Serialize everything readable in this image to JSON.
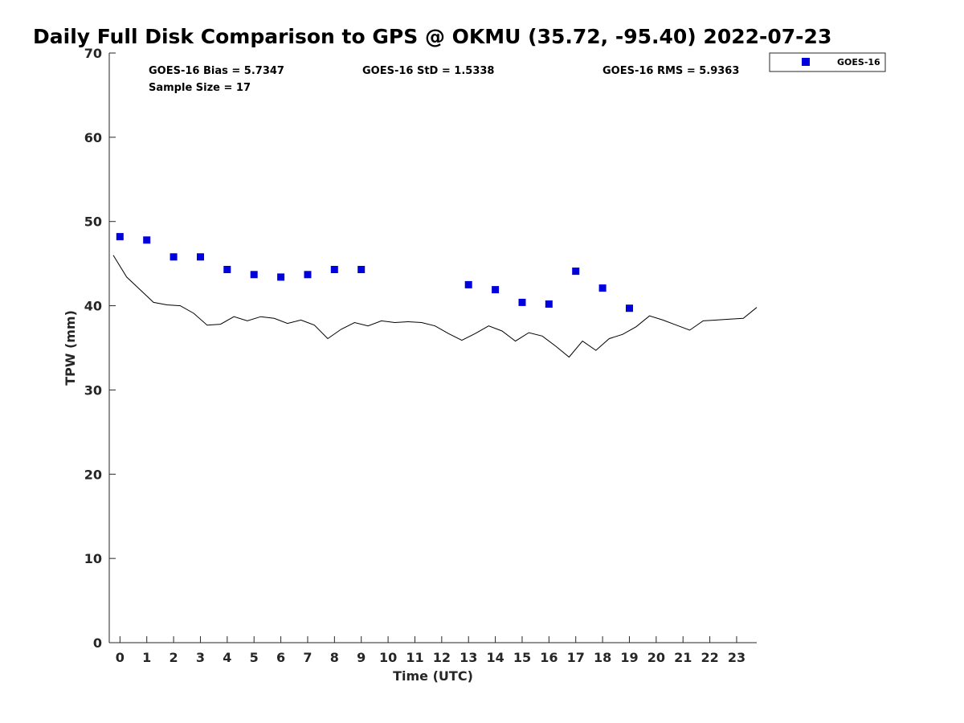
{
  "chart_data": {
    "type": "scatter",
    "title": "Daily Full Disk Comparison to GPS @ OKMU (35.72, -95.40) 2022-07-23",
    "xlabel": "Time (UTC)",
    "ylabel": "TPW (mm)",
    "xlim": [
      -0.4,
      23.75
    ],
    "ylim": [
      0,
      70
    ],
    "xticks": [
      "0",
      "1",
      "2",
      "3",
      "4",
      "5",
      "6",
      "7",
      "8",
      "9",
      "10",
      "11",
      "12",
      "13",
      "14",
      "15",
      "16",
      "17",
      "18",
      "19",
      "20",
      "21",
      "22",
      "23"
    ],
    "yticks": [
      "0",
      "10",
      "20",
      "30",
      "40",
      "50",
      "60",
      "70"
    ],
    "grid": false,
    "legend_position": "top-right-outside",
    "stats": {
      "bias": "GOES-16 Bias = 5.7347",
      "std": "GOES-16 StD = 1.5338",
      "rms": "GOES-16 RMS = 5.9363",
      "sample": "Sample Size = 17"
    },
    "series": [
      {
        "name": "GOES-16",
        "kind": "scatter",
        "marker": "square",
        "color": "#0000dd",
        "points": [
          {
            "x": 0,
            "y": 48.2
          },
          {
            "x": 1,
            "y": 47.8
          },
          {
            "x": 2,
            "y": 45.8
          },
          {
            "x": 3,
            "y": 45.8
          },
          {
            "x": 4,
            "y": 44.3
          },
          {
            "x": 5,
            "y": 43.7
          },
          {
            "x": 6,
            "y": 43.4
          },
          {
            "x": 7,
            "y": 43.7
          },
          {
            "x": 8,
            "y": 44.3
          },
          {
            "x": 9,
            "y": 44.3
          },
          {
            "x": 13,
            "y": 42.5
          },
          {
            "x": 14,
            "y": 41.9
          },
          {
            "x": 15,
            "y": 40.4
          },
          {
            "x": 16,
            "y": 40.2
          },
          {
            "x": 17,
            "y": 44.1
          },
          {
            "x": 18,
            "y": 42.1
          },
          {
            "x": 19,
            "y": 39.7
          }
        ]
      },
      {
        "kind": "line",
        "color": "#000000",
        "points": [
          {
            "x": -0.25,
            "y": 46.0
          },
          {
            "x": 0.25,
            "y": 43.4
          },
          {
            "x": 0.75,
            "y": 41.9
          },
          {
            "x": 1.25,
            "y": 40.4
          },
          {
            "x": 1.75,
            "y": 40.1
          },
          {
            "x": 2.25,
            "y": 40.0
          },
          {
            "x": 2.75,
            "y": 39.1
          },
          {
            "x": 3.25,
            "y": 37.7
          },
          {
            "x": 3.75,
            "y": 37.8
          },
          {
            "x": 4.25,
            "y": 38.7
          },
          {
            "x": 4.75,
            "y": 38.2
          },
          {
            "x": 5.25,
            "y": 38.7
          },
          {
            "x": 5.75,
            "y": 38.5
          },
          {
            "x": 6.25,
            "y": 37.9
          },
          {
            "x": 6.75,
            "y": 38.3
          },
          {
            "x": 7.25,
            "y": 37.7
          },
          {
            "x": 7.75,
            "y": 36.1
          },
          {
            "x": 8.25,
            "y": 37.2
          },
          {
            "x": 8.75,
            "y": 38.0
          },
          {
            "x": 9.25,
            "y": 37.6
          },
          {
            "x": 9.75,
            "y": 38.2
          },
          {
            "x": 10.25,
            "y": 38.0
          },
          {
            "x": 10.75,
            "y": 38.1
          },
          {
            "x": 11.25,
            "y": 38.0
          },
          {
            "x": 11.75,
            "y": 37.6
          },
          {
            "x": 12.25,
            "y": 36.7
          },
          {
            "x": 12.75,
            "y": 35.9
          },
          {
            "x": 13.25,
            "y": 36.7
          },
          {
            "x": 13.75,
            "y": 37.6
          },
          {
            "x": 14.25,
            "y": 37.0
          },
          {
            "x": 14.75,
            "y": 35.8
          },
          {
            "x": 15.25,
            "y": 36.8
          },
          {
            "x": 15.75,
            "y": 36.4
          },
          {
            "x": 16.25,
            "y": 35.2
          },
          {
            "x": 16.75,
            "y": 33.9
          },
          {
            "x": 17.25,
            "y": 35.8
          },
          {
            "x": 17.75,
            "y": 34.7
          },
          {
            "x": 18.25,
            "y": 36.1
          },
          {
            "x": 18.75,
            "y": 36.6
          },
          {
            "x": 19.25,
            "y": 37.5
          },
          {
            "x": 19.75,
            "y": 38.8
          },
          {
            "x": 20.25,
            "y": 38.3
          },
          {
            "x": 20.75,
            "y": 37.7
          },
          {
            "x": 21.25,
            "y": 37.1
          },
          {
            "x": 21.75,
            "y": 38.2
          },
          {
            "x": 22.25,
            "y": 38.3
          },
          {
            "x": 22.75,
            "y": 38.4
          },
          {
            "x": 23.25,
            "y": 38.5
          },
          {
            "x": 23.75,
            "y": 39.8
          }
        ]
      }
    ]
  }
}
